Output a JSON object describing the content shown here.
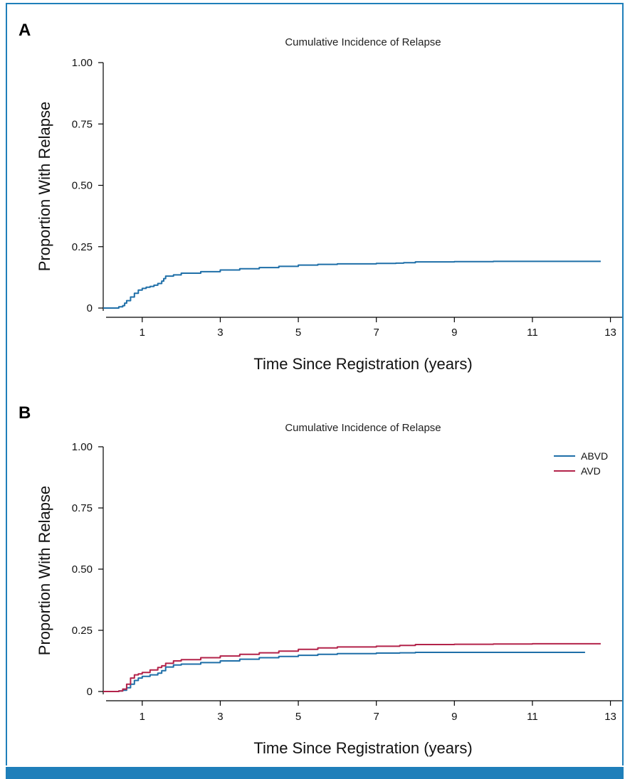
{
  "chart_data": [
    {
      "type": "line",
      "panel_label": "A",
      "title": "Cumulative Incidence of Relapse",
      "xlabel": "Time Since Registration (years)",
      "ylabel": "Proportion With Relapse",
      "xlim": [
        0,
        13.3
      ],
      "ylim": [
        0,
        1.0
      ],
      "xticks": [
        1,
        3,
        5,
        7,
        9,
        11,
        13
      ],
      "yticks": [
        0,
        0.25,
        0.5,
        0.75,
        1.0
      ],
      "ytick_labels": [
        "0",
        "0.25",
        "0.50",
        "0.75",
        "1.00"
      ],
      "grid": false,
      "legend": null,
      "series": [
        {
          "color": "#1f6fa8",
          "x": [
            0,
            0.2,
            0.4,
            0.5,
            0.55,
            0.6,
            0.7,
            0.8,
            0.9,
            1.0,
            1.1,
            1.2,
            1.3,
            1.4,
            1.5,
            1.55,
            1.6,
            1.8,
            2.0,
            2.5,
            3.0,
            3.5,
            4.0,
            4.5,
            5.0,
            5.5,
            6.0,
            7.0,
            7.5,
            7.7,
            8.0,
            9.0,
            10.0,
            11.0,
            12.0,
            12.75
          ],
          "y": [
            0,
            0,
            0.005,
            0.01,
            0.02,
            0.03,
            0.045,
            0.06,
            0.073,
            0.08,
            0.085,
            0.088,
            0.093,
            0.1,
            0.11,
            0.12,
            0.13,
            0.135,
            0.142,
            0.148,
            0.155,
            0.16,
            0.165,
            0.17,
            0.175,
            0.178,
            0.18,
            0.182,
            0.183,
            0.185,
            0.188,
            0.189,
            0.19,
            0.19,
            0.19,
            0.19
          ]
        }
      ]
    },
    {
      "type": "line",
      "panel_label": "B",
      "title": "Cumulative Incidence of Relapse",
      "xlabel": "Time Since Registration (years)",
      "ylabel": "Proportion With Relapse",
      "xlim": [
        0,
        13.3
      ],
      "ylim": [
        0,
        1.0
      ],
      "xticks": [
        1,
        3,
        5,
        7,
        9,
        11,
        13
      ],
      "yticks": [
        0,
        0.25,
        0.5,
        0.75,
        1.0
      ],
      "ytick_labels": [
        "0",
        "0.25",
        "0.50",
        "0.75",
        "1.00"
      ],
      "grid": false,
      "legend": "top-right",
      "series": [
        {
          "name": "ABVD",
          "color": "#1f6fa8",
          "x": [
            0,
            0.2,
            0.4,
            0.5,
            0.6,
            0.7,
            0.8,
            0.9,
            1.0,
            1.2,
            1.4,
            1.5,
            1.6,
            1.8,
            2.0,
            2.5,
            3.0,
            3.5,
            4.0,
            4.5,
            5.0,
            5.5,
            6.0,
            7.0,
            7.6,
            8.0,
            9.0,
            10.0,
            11.0,
            12.0,
            12.35
          ],
          "y": [
            0,
            0,
            0.002,
            0.005,
            0.015,
            0.03,
            0.045,
            0.055,
            0.062,
            0.068,
            0.075,
            0.085,
            0.1,
            0.108,
            0.112,
            0.118,
            0.125,
            0.132,
            0.138,
            0.143,
            0.148,
            0.152,
            0.155,
            0.157,
            0.158,
            0.16,
            0.16,
            0.16,
            0.16,
            0.16,
            0.16
          ]
        },
        {
          "name": "AVD",
          "color": "#b3234a",
          "x": [
            0,
            0.2,
            0.4,
            0.5,
            0.6,
            0.7,
            0.8,
            0.9,
            1.0,
            1.2,
            1.4,
            1.5,
            1.6,
            1.8,
            2.0,
            2.5,
            3.0,
            3.5,
            4.0,
            4.5,
            5.0,
            5.5,
            6.0,
            7.0,
            7.6,
            8.0,
            9.0,
            10.0,
            11.0,
            12.0,
            12.75
          ],
          "y": [
            0,
            0,
            0.002,
            0.01,
            0.03,
            0.055,
            0.068,
            0.072,
            0.078,
            0.088,
            0.098,
            0.105,
            0.115,
            0.125,
            0.13,
            0.138,
            0.145,
            0.152,
            0.158,
            0.165,
            0.172,
            0.178,
            0.182,
            0.185,
            0.188,
            0.192,
            0.193,
            0.194,
            0.195,
            0.195,
            0.195
          ]
        }
      ]
    }
  ]
}
